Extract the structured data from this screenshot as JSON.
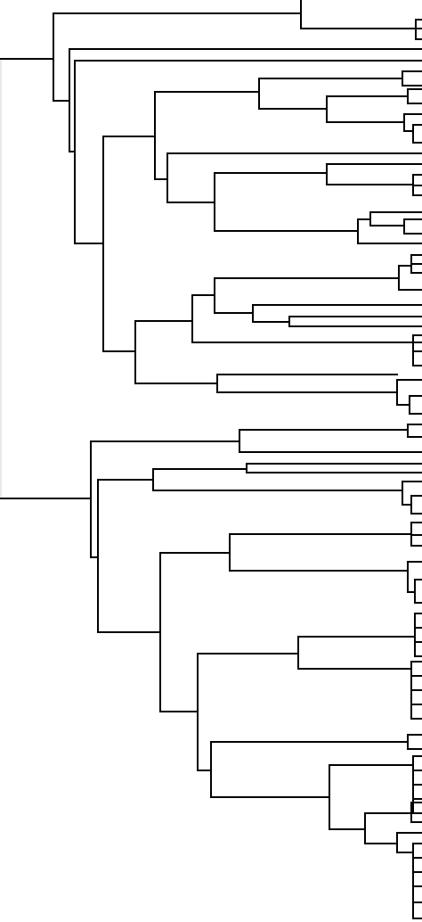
{
  "diagram": {
    "type": "dendrogram",
    "orientation": "left-to-right",
    "labels_visible": false,
    "colors": {
      "line": "#000000",
      "root_stub": "#d0d0d0",
      "background": "#ffffff"
    },
    "leaf_count": 110,
    "clusters": [
      {
        "id": "top-isolate",
        "leaves": 3
      },
      {
        "id": "main-upper",
        "leaves": 48
      },
      {
        "id": "main-lower",
        "leaves": 59
      }
    ]
  }
}
